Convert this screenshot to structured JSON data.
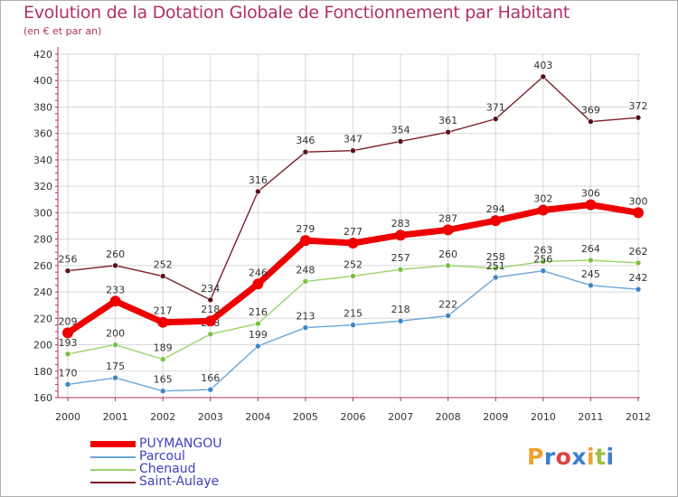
{
  "title": "Evolution de la Dotation Globale de Fonctionnement par Habitant",
  "subtitle": "(en € et par an)",
  "colors": {
    "title": "#b0306a",
    "axis": "#b0306a",
    "grid": "#d8d8d8",
    "legend_text": "#4040c0"
  },
  "chart_data": {
    "type": "line",
    "title": "Evolution de la Dotation Globale de Fonctionnement par Habitant",
    "subtitle": "(en € et par an)",
    "xlabel": "",
    "ylabel": "",
    "ylim": [
      160,
      420
    ],
    "yticks": [
      160,
      180,
      200,
      220,
      240,
      260,
      280,
      300,
      320,
      340,
      360,
      380,
      400,
      420
    ],
    "grid": true,
    "legend_position": "bottom-left",
    "categories": [
      "2000",
      "2001",
      "2002",
      "2003",
      "2004",
      "2005",
      "2006",
      "2007",
      "2008",
      "2009",
      "2010",
      "2011",
      "2012"
    ],
    "series": [
      {
        "name": "Saint-Aulaye",
        "color": "#7a1f2a",
        "marker": "#5a1018",
        "width": "thin",
        "values": [
          256,
          260,
          252,
          234,
          316,
          346,
          347,
          354,
          361,
          371,
          403,
          369,
          372
        ]
      },
      {
        "name": "Chenaud",
        "color": "#9ad46a",
        "marker": "#7ac040",
        "width": "thin",
        "values": [
          193,
          200,
          189,
          208,
          216,
          248,
          252,
          257,
          260,
          258,
          263,
          264,
          262
        ]
      },
      {
        "name": "Parcoul",
        "color": "#6aa6d8",
        "marker": "#3a86c8",
        "width": "thin",
        "values": [
          170,
          175,
          165,
          166,
          199,
          213,
          215,
          218,
          222,
          251,
          256,
          245,
          242
        ]
      },
      {
        "name": "PUYMANGOU",
        "color": "#ee0000",
        "marker": "#ee0000",
        "width": "thick",
        "values": [
          209,
          233,
          217,
          218,
          246,
          279,
          277,
          283,
          287,
          294,
          302,
          306,
          300
        ]
      }
    ],
    "legend_order": [
      "PUYMANGOU",
      "Parcoul",
      "Chenaud",
      "Saint-Aulaye"
    ]
  },
  "logo": {
    "text": "Proxiti",
    "letters": [
      "P",
      "r",
      "o",
      "x",
      "i",
      "t",
      "i"
    ],
    "letter_colors": [
      "#f0a030",
      "#3a7fd0",
      "#e04040",
      "#3a7fd0",
      "#f0a030",
      "#9ac040",
      "#3a7fd0"
    ]
  }
}
